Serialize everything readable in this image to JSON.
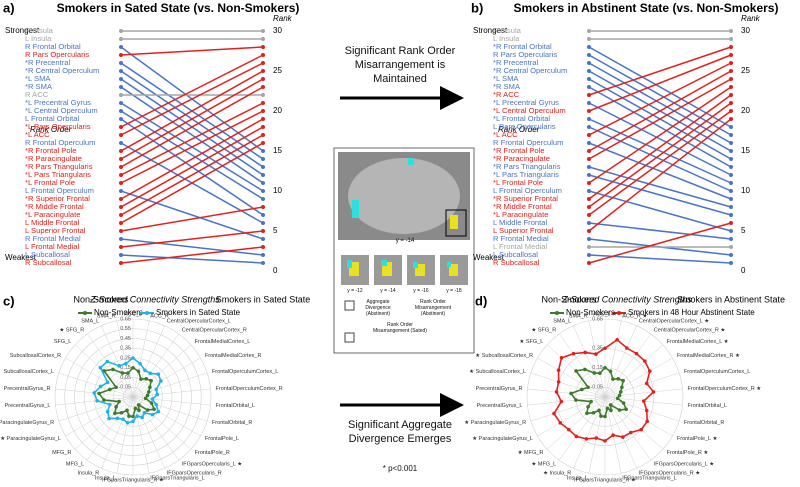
{
  "chart_data": [
    {
      "type": "slope",
      "panel_label": "a)",
      "title": "Smokers in Sated State (vs. Non-Smokers)",
      "y_label": "Rank",
      "annotations": [
        "Strongest",
        "Rank Order",
        "Weakest"
      ],
      "categories": [
        "R Insula",
        "L Insula",
        "R Frontal Orbital",
        "R Pars Opercularis",
        "*R Precentral",
        "*R Central Operculum",
        "*L SMA",
        "*R SMA",
        "R ACC",
        "*L Precentral Gyrus",
        "*L Central Operculum",
        "L Frontal Orbital",
        "*L Pars Opercularis",
        "*L ACC",
        "R Frontal Operculum",
        "*R Frontal Pole",
        "*R Paracingulate",
        "*R Pars Triangularis",
        "*L Pars Triangularis",
        "*L Frontal Pole",
        "L Frontal Operculum",
        "*R Superior Frontal",
        "*R Middle Frontal",
        "*L Paracingulate",
        "L Middle Frontal",
        "L Superior Frontal",
        "R Frontal Medial",
        "L Frontal Medial",
        "L Subcallosal",
        "R Subcallosal"
      ],
      "colors": [
        "#a6a6a6",
        "#a6a6a6",
        "#4a74c6",
        "#e3211c",
        "#4a74c6",
        "#4a74c6",
        "#4a74c6",
        "#4a74c6",
        "#a6a6a6",
        "#4a74c6",
        "#4a74c6",
        "#4a74c6",
        "#e3211c",
        "#e3211c",
        "#4a74c6",
        "#e3211c",
        "#e3211c",
        "#e3211c",
        "#e3211c",
        "#e3211c",
        "#4a74c6",
        "#e3211c",
        "#e3211c",
        "#e3211c",
        "#e3211c",
        "#e3211c",
        "#4a74c6",
        "#e3211c",
        "#4a74c6",
        "#e3211c"
      ],
      "series": [
        {
          "name": "Non-Smokers",
          "values": [
            30,
            29,
            28,
            27,
            26,
            25,
            24,
            23,
            22,
            21,
            20,
            19,
            18,
            17,
            16,
            15,
            14,
            13,
            12,
            11,
            10,
            9,
            8,
            7,
            6,
            5,
            4,
            3,
            2,
            1
          ]
        },
        {
          "name": "Smokers in Sated State",
          "values": [
            30,
            29,
            15,
            28,
            14,
            13,
            12,
            11,
            22,
            10,
            9,
            7,
            27,
            26,
            6,
            25,
            24,
            23,
            21,
            20,
            4,
            19,
            18,
            17,
            16,
            8,
            2,
            5,
            1,
            3
          ]
        }
      ],
      "ylim": [
        0,
        30
      ],
      "yticks": [
        0,
        5,
        10,
        15,
        20,
        25,
        30
      ]
    },
    {
      "type": "slope",
      "panel_label": "b)",
      "title": "Smokers in Abstinent State (vs. Non-Smokers)",
      "y_label": "Rank",
      "annotations": [
        "Strongest",
        "Rank Order",
        "Weakest"
      ],
      "categories": [
        "R Insula",
        "L Insula",
        "*R Frontal Orbital",
        "R Pars Opercularis",
        "*R Precentral",
        "*R Central Operculum",
        "*L SMA",
        "*R SMA",
        "*R ACC",
        "*L Precentral Gyrus",
        "*L Central Operculum",
        "*L Frontal Orbital",
        "L Pars Opercularis",
        "*L ACC",
        "R Frontal Operculum",
        "*R Frontal Pole",
        "*R Paracingulate",
        "*R Pars Triangularis",
        "*L Pars Triangularis",
        "*L Frontal Pole",
        "L Frontal Operculum",
        "*R Superior Frontal",
        "*R Middle Frontal",
        "*L Paracingulate",
        "L Middle Frontal",
        "L Superior Frontal",
        "R Frontal Medial",
        "L Frontal Medial",
        "L Subcallosal",
        "R Subcallosal"
      ],
      "colors": [
        "#a6a6a6",
        "#a6a6a6",
        "#4a74c6",
        "#4a74c6",
        "#4a74c6",
        "#4a74c6",
        "#4a74c6",
        "#4a74c6",
        "#e3211c",
        "#4a74c6",
        "#e3211c",
        "#4a74c6",
        "#4a74c6",
        "#e3211c",
        "#4a74c6",
        "#e3211c",
        "#e3211c",
        "#4a74c6",
        "#4a74c6",
        "#e3211c",
        "#4a74c6",
        "#e3211c",
        "#e3211c",
        "#e3211c",
        "#4a74c6",
        "#e3211c",
        "#4a74c6",
        "#a6a6a6",
        "#4a74c6",
        "#e3211c"
      ],
      "series": [
        {
          "name": "Non-Smokers",
          "values": [
            30,
            29,
            28,
            27,
            26,
            25,
            24,
            23,
            22,
            21,
            20,
            19,
            18,
            17,
            16,
            15,
            14,
            13,
            12,
            11,
            10,
            9,
            8,
            7,
            6,
            5,
            4,
            3,
            2,
            1
          ]
        },
        {
          "name": "Smokers in Abstinent State",
          "values": [
            30,
            29,
            18,
            17,
            16,
            15,
            14,
            13,
            28,
            12,
            27,
            11,
            10,
            26,
            9,
            25,
            24,
            8,
            7,
            23,
            5,
            22,
            21,
            20,
            4,
            19,
            2,
            3,
            1,
            6
          ]
        }
      ],
      "ylim": [
        0,
        30
      ],
      "yticks": [
        0,
        5,
        10,
        15,
        20,
        25,
        30
      ]
    },
    {
      "type": "radar",
      "panel_label": "c)",
      "title": "Z-Scored Connectivity Strengths",
      "categories": [
        "ACC_L",
        "ACC_R",
        "CentralOpercularCortex_L",
        "CentralOpercularCortex_R",
        "FrontalMedialCortex_L",
        "FrontalMedialCortex_R",
        "FrontalOperculumCortex_L",
        "FrontalOperculumCortex_R",
        "FrontalOrbital_L",
        "FrontalOrbital_R",
        "FrontalPole_L",
        "FrontalPole_R",
        "IFGparsOpercularis_L ★",
        "IFGparsOpercularis_R",
        "IFGparsTriangularis_L",
        "IFGparsTriangularis_R ★",
        "Insula_L",
        "Insula_R",
        "MFG_L",
        "MFG_R",
        "★ ParacingulateGyrus_L",
        "ParacingulateGyrus_R",
        "PrecentralGyrus_L",
        "PrecentralGyrus_R",
        "SubcallosalCortex_L",
        "SubcallosalCortex_R",
        "SFG_L",
        "★ SFG_R",
        "SMA_L",
        "SMA_R"
      ],
      "series": [
        {
          "name": "Non-Smokers",
          "color": "#3d7a2a",
          "values": [
            0.15,
            0.12,
            0.05,
            0.08,
            0.1,
            0.05,
            0.02,
            0.0,
            -0.02,
            0.05,
            0.1,
            0.05,
            -0.05,
            0.0,
            -0.03,
            0.05,
            0.05,
            0.0,
            0.05,
            0.1,
            0.05,
            0.0,
            0.15,
            0.2,
            0.1,
            0.05,
            0.25,
            0.2,
            0.12,
            0.1
          ]
        },
        {
          "name": "Smokers in Sated State",
          "color": "#1fb2e8",
          "values": [
            0.25,
            0.2,
            0.15,
            0.15,
            0.2,
            0.18,
            0.1,
            0.1,
            0.05,
            0.1,
            0.15,
            0.12,
            0.05,
            0.08,
            0.05,
            0.1,
            0.12,
            0.1,
            0.12,
            0.18,
            0.15,
            0.1,
            0.22,
            0.25,
            0.2,
            0.15,
            0.3,
            0.3,
            0.2,
            0.2
          ]
        }
      ],
      "rlim": [
        -0.15,
        0.65
      ],
      "rticks": [
        -0.05,
        0.05,
        0.15,
        0.25,
        0.35,
        0.45,
        0.55,
        0.65
      ]
    },
    {
      "type": "radar",
      "panel_label": "d)",
      "title": "Z-Scored Connectivity Strengths",
      "categories": [
        "ACC_L ★",
        "ACC_R ★",
        "CentralOpercularCortex_L ★",
        "CentralOpercularCortex_R ★",
        "FrontalMedialCortex_L ★",
        "FrontalMedialCortex_R ★",
        "FrontalOperculumCortex_L",
        "FrontalOperculumCortex_R ★",
        "FrontalOrbital_L",
        "FrontalOrbital_R",
        "FrontalPole_L ★",
        "FrontalPole_R ★",
        "IFGparsOpercularis_L ★",
        "IFGparsOpercularis_R ★",
        "IFGparsTriangularis_L",
        "IFGparsTriangularis_R ★",
        "Insula_L",
        "★ Insula_R",
        "★ MFG_L",
        "★ MFG_R",
        "★ ParacingulateGyrus_L",
        "★ ParacingulateGyrus_R",
        "PrecentralGyrus_L",
        "PrecentralGyrus_R",
        "★ SubcallosalCortex_L",
        "★ SubcallosalCortex_R",
        "★ SFG_L",
        "★ SFG_R",
        "SMA_L",
        "SMA_R"
      ],
      "series": [
        {
          "name": "Non-Smokers",
          "color": "#3d7a2a",
          "values": [
            0.15,
            0.12,
            0.05,
            0.08,
            0.1,
            0.05,
            0.02,
            0.0,
            -0.02,
            0.05,
            0.1,
            0.05,
            -0.05,
            0.0,
            -0.03,
            0.05,
            0.05,
            0.0,
            0.05,
            0.1,
            0.05,
            0.0,
            0.15,
            0.2,
            0.1,
            0.05,
            0.25,
            0.2,
            0.12,
            0.1
          ]
        },
        {
          "name": "Smokers in 48 Hour Abstinent State",
          "color": "#e3211c",
          "values": [
            0.35,
            0.45,
            0.4,
            0.4,
            0.4,
            0.38,
            0.3,
            0.35,
            0.25,
            0.3,
            0.35,
            0.35,
            0.3,
            0.3,
            0.25,
            0.3,
            0.28,
            0.32,
            0.35,
            0.35,
            0.38,
            0.4,
            0.3,
            0.35,
            0.35,
            0.4,
            0.45,
            0.4,
            0.35,
            0.3
          ]
        }
      ],
      "rlim": [
        -0.15,
        0.65
      ],
      "rticks": [
        -0.05,
        0.15,
        0.35,
        0.65
      ]
    }
  ],
  "center": {
    "top_text": "Significant Rank Order Misarrangement is Maintained",
    "main_slice": "y = -14",
    "slices": [
      "y = -12",
      "y = -14",
      "y = -16",
      "y = -18"
    ],
    "legend": [
      "Aggregate Divergence (Abstinent)",
      "Rank Order Misarrangement (Abstinent)",
      "Rank Order Misarrangement (Sated)"
    ],
    "bottom_text": "Significant Aggregate Divergence Emerges",
    "note": "* p<0.001"
  }
}
